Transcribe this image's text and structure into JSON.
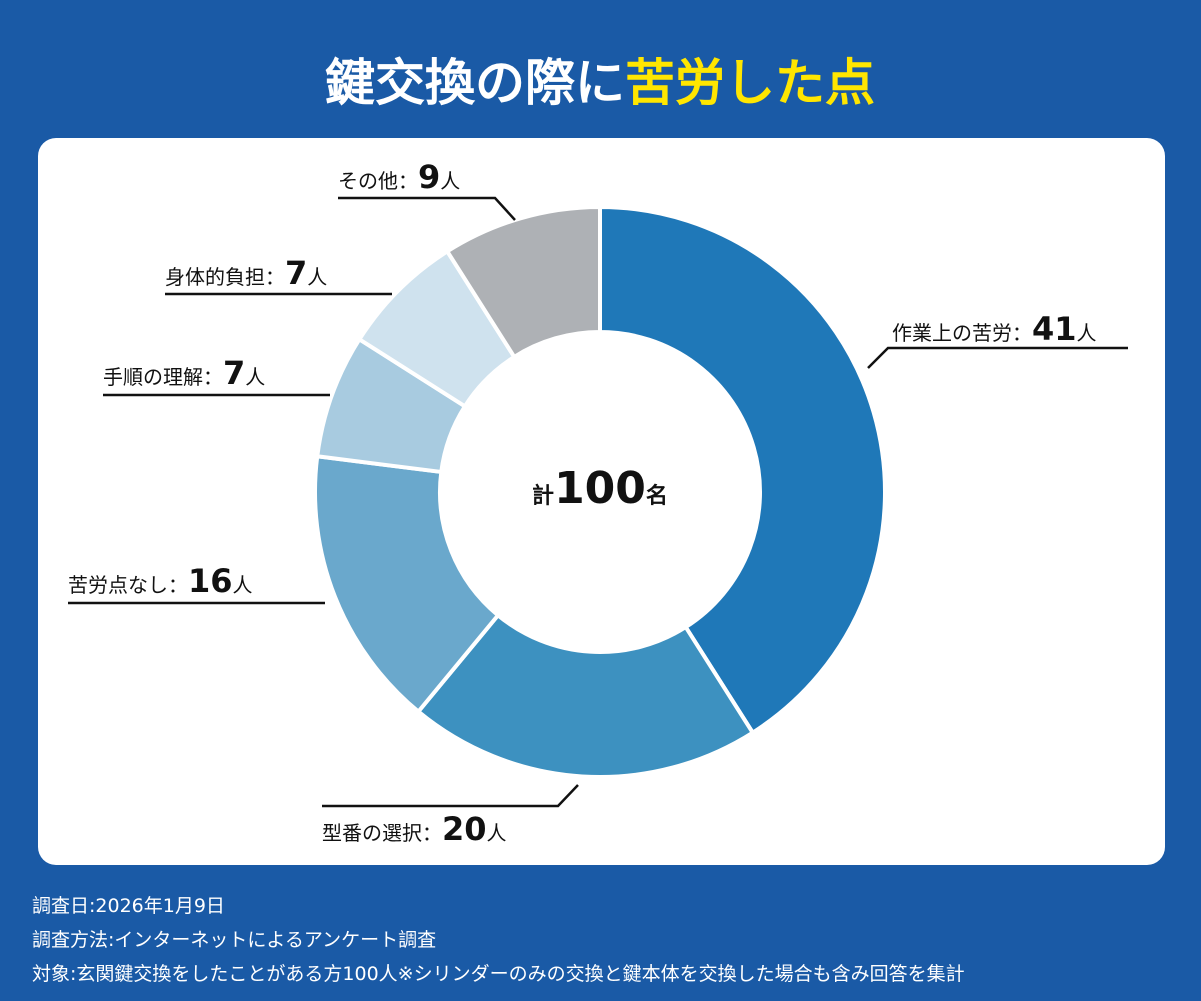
{
  "chart_data": {
    "type": "donut",
    "title": "鍵交換の際に",
    "title_highlight": "苦労した点",
    "categories": [
      "作業上の苦労",
      "型番の選択",
      "苦労点なし",
      "手順の理解",
      "身体的負担",
      "その他"
    ],
    "values": [
      41,
      20,
      16,
      7,
      7,
      9
    ],
    "colors": [
      "#1f78b8",
      "#3d91c0",
      "#6aa8cc",
      "#a8cbe0",
      "#cfe2ee",
      "#aeb1b5"
    ],
    "separator": "：",
    "unit": "人",
    "center": {
      "prefix": "計",
      "value": 100,
      "unit": "名"
    },
    "notes": [
      "調査日:2026年1月9日",
      "調査方法:インターネットによるアンケート調査",
      "対象:玄関鍵交換をしたことがある方100人※シリンダーのみの交換と鍵本体を交換した場合も含み回答を集計"
    ]
  }
}
